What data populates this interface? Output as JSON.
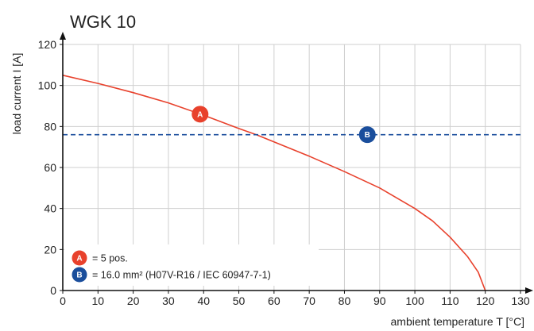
{
  "chart_data": {
    "type": "line",
    "title": "WGK 10",
    "xlabel": "ambient temperature T [°C]",
    "ylabel": "load current I [A]",
    "xlim": [
      0,
      130
    ],
    "ylim": [
      0,
      120
    ],
    "x_ticks": [
      0,
      10,
      20,
      30,
      40,
      50,
      60,
      70,
      80,
      90,
      100,
      110,
      120,
      130
    ],
    "y_ticks": [
      0,
      20,
      40,
      60,
      80,
      100,
      120
    ],
    "grid": true,
    "legend_position": "bottom-left",
    "series": [
      {
        "name": "A",
        "style": "solid",
        "color": "#e8412c",
        "x": [
          0,
          10,
          20,
          30,
          40,
          50,
          55,
          60,
          70,
          80,
          90,
          100,
          105,
          110,
          115,
          118,
          120
        ],
        "y": [
          105,
          101,
          96.5,
          91.5,
          85.5,
          79,
          76,
          72.5,
          65.5,
          58,
          50,
          40,
          34,
          26,
          16.5,
          9,
          0
        ]
      },
      {
        "name": "B",
        "style": "dashed",
        "color": "#1a4e9c",
        "x": [
          0,
          130
        ],
        "y": [
          76,
          76
        ]
      }
    ],
    "markers": [
      {
        "label": "A",
        "x": 39,
        "y": 86,
        "color": "#e8412c"
      },
      {
        "label": "B",
        "x": 86.5,
        "y": 76,
        "color": "#1a4e9c"
      }
    ],
    "legend": [
      {
        "marker": "A",
        "text": "= 5 pos.",
        "color": "#e8412c"
      },
      {
        "marker": "B",
        "text": "= 16.0 mm² (H07V-R16 / IEC 60947-7-1)",
        "color": "#1a4e9c"
      }
    ]
  }
}
